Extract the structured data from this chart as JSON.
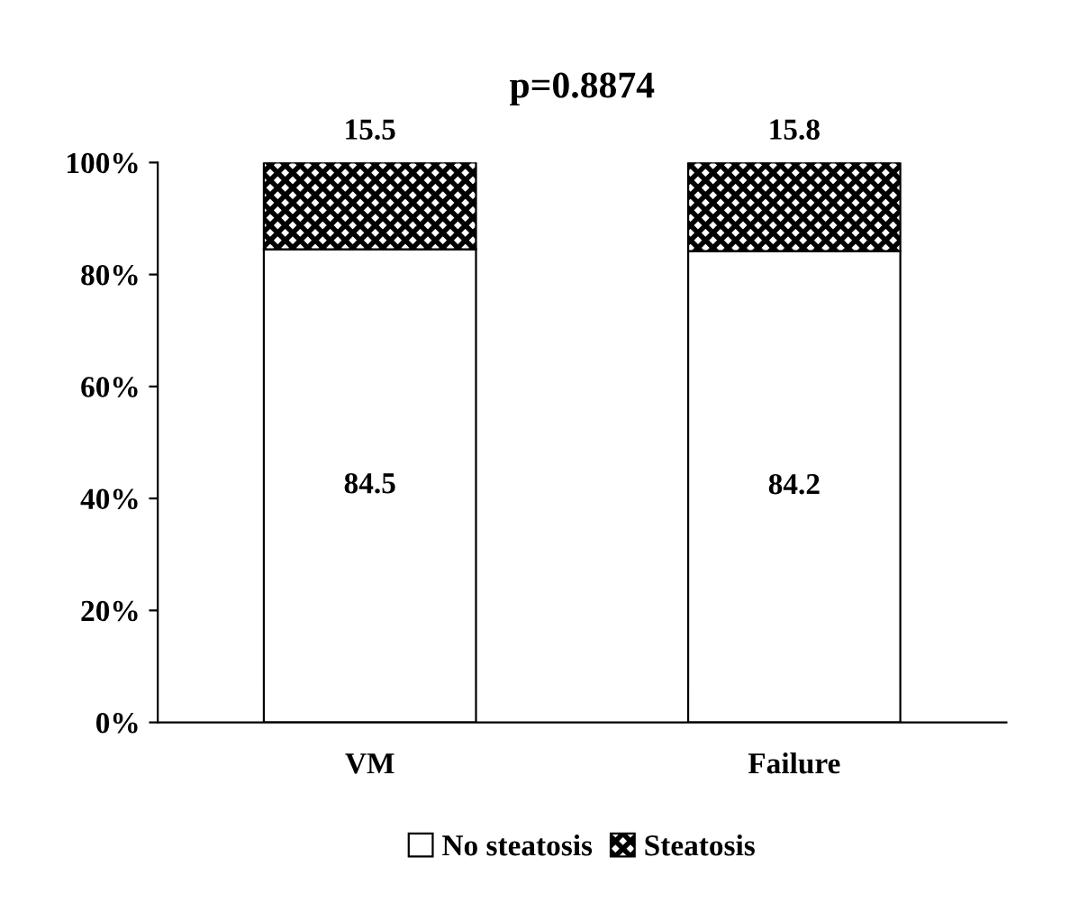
{
  "chart_data": {
    "type": "bar",
    "title": "p=0.8874",
    "categories": [
      "VM",
      "Failure"
    ],
    "stacked": true,
    "series": [
      {
        "name": "No steatosis",
        "color": "#ffffff",
        "values": [
          84.5,
          84.2
        ]
      },
      {
        "name": "Steatosis",
        "color": "#000000",
        "values": [
          15.5,
          15.8
        ]
      }
    ],
    "ylim": [
      0,
      100
    ],
    "yticks": [
      {
        "value": 0,
        "label": "0%"
      },
      {
        "value": 20,
        "label": "20%"
      },
      {
        "value": 40,
        "label": "40%"
      },
      {
        "value": 60,
        "label": "60%"
      },
      {
        "value": 80,
        "label": "80%"
      },
      {
        "value": 100,
        "label": "100%"
      }
    ],
    "data_labels": true,
    "grid": false,
    "legend": "bottom"
  }
}
